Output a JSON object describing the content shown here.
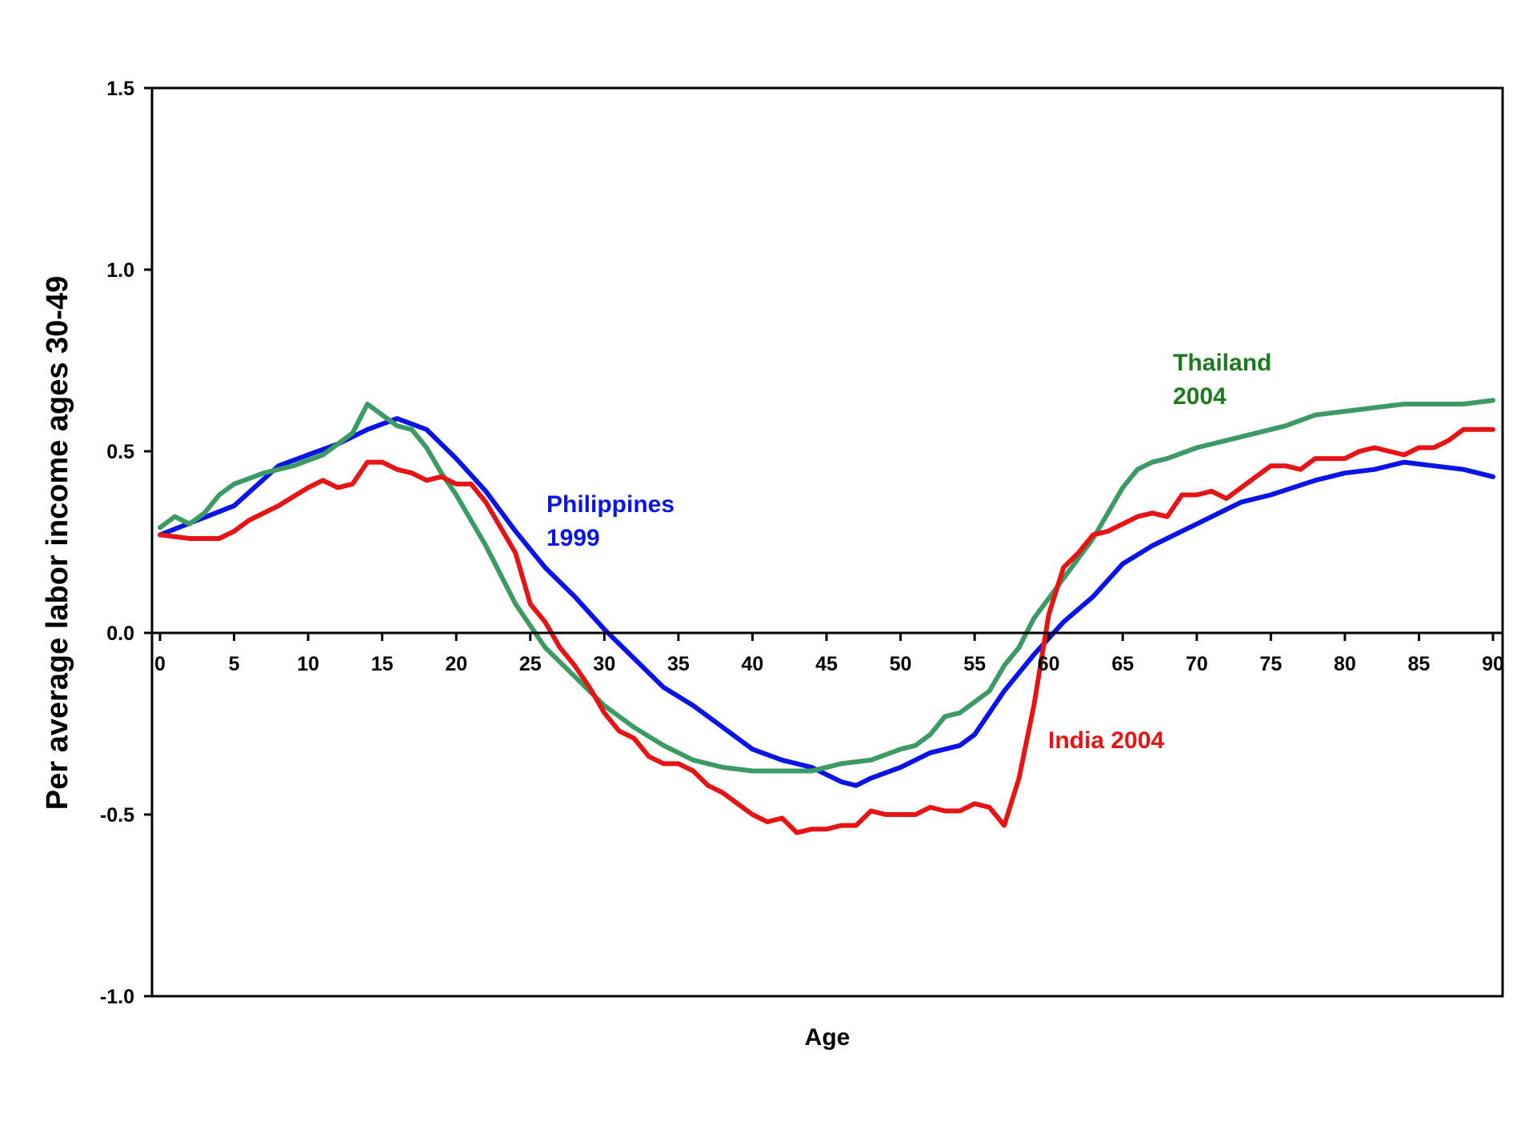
{
  "chart_data": {
    "type": "line",
    "title": "",
    "xlabel": "Age",
    "ylabel": "Per average labor income ages 30-49",
    "xlim": [
      0,
      90
    ],
    "ylim": [
      -1.0,
      1.5
    ],
    "x_ticks": [
      "0",
      "5",
      "10",
      "15",
      "20",
      "25",
      "30",
      "35",
      "40",
      "45",
      "50",
      "55",
      "60",
      "65",
      "70",
      "75",
      "80",
      "85",
      "90"
    ],
    "y_ticks": [
      "1.5",
      "1.0",
      "0.5",
      "0.0",
      "-0.5",
      "-1.0"
    ],
    "grid": false,
    "legend": "none",
    "series": [
      {
        "name": "Philippines 1999",
        "label_lines": [
          "Philippines",
          "1999"
        ],
        "color": "#0a14e6",
        "points": [
          [
            0,
            0.27
          ],
          [
            5,
            0.35
          ],
          [
            8,
            0.46
          ],
          [
            10,
            0.49
          ],
          [
            12,
            0.52
          ],
          [
            14,
            0.56
          ],
          [
            16,
            0.59
          ],
          [
            18,
            0.56
          ],
          [
            20,
            0.48
          ],
          [
            22,
            0.39
          ],
          [
            24,
            0.28
          ],
          [
            26,
            0.18
          ],
          [
            28,
            0.1
          ],
          [
            30,
            0.01
          ],
          [
            32,
            -0.07
          ],
          [
            34,
            -0.15
          ],
          [
            36,
            -0.2
          ],
          [
            38,
            -0.26
          ],
          [
            40,
            -0.32
          ],
          [
            42,
            -0.35
          ],
          [
            44,
            -0.37
          ],
          [
            46,
            -0.41
          ],
          [
            47,
            -0.42
          ],
          [
            48,
            -0.4
          ],
          [
            50,
            -0.37
          ],
          [
            52,
            -0.33
          ],
          [
            54,
            -0.31
          ],
          [
            55,
            -0.28
          ],
          [
            57,
            -0.16
          ],
          [
            59,
            -0.06
          ],
          [
            61,
            0.03
          ],
          [
            63,
            0.1
          ],
          [
            65,
            0.19
          ],
          [
            67,
            0.24
          ],
          [
            70,
            0.3
          ],
          [
            73,
            0.36
          ],
          [
            75,
            0.38
          ],
          [
            78,
            0.42
          ],
          [
            80,
            0.44
          ],
          [
            82,
            0.45
          ],
          [
            84,
            0.47
          ],
          [
            86,
            0.46
          ],
          [
            88,
            0.45
          ],
          [
            90,
            0.43
          ]
        ]
      },
      {
        "name": "India 2004",
        "label_lines": [
          "India 2004"
        ],
        "color": "#e61414",
        "points": [
          [
            0,
            0.27
          ],
          [
            2,
            0.26
          ],
          [
            4,
            0.26
          ],
          [
            5,
            0.28
          ],
          [
            6,
            0.31
          ],
          [
            8,
            0.35
          ],
          [
            10,
            0.4
          ],
          [
            11,
            0.42
          ],
          [
            12,
            0.4
          ],
          [
            13,
            0.41
          ],
          [
            14,
            0.47
          ],
          [
            15,
            0.47
          ],
          [
            16,
            0.45
          ],
          [
            17,
            0.44
          ],
          [
            18,
            0.42
          ],
          [
            19,
            0.43
          ],
          [
            20,
            0.41
          ],
          [
            21,
            0.41
          ],
          [
            22,
            0.36
          ],
          [
            24,
            0.22
          ],
          [
            25,
            0.08
          ],
          [
            26,
            0.03
          ],
          [
            27,
            -0.04
          ],
          [
            28,
            -0.09
          ],
          [
            29,
            -0.15
          ],
          [
            30,
            -0.22
          ],
          [
            31,
            -0.27
          ],
          [
            32,
            -0.29
          ],
          [
            33,
            -0.34
          ],
          [
            34,
            -0.36
          ],
          [
            35,
            -0.36
          ],
          [
            36,
            -0.38
          ],
          [
            37,
            -0.42
          ],
          [
            38,
            -0.44
          ],
          [
            39,
            -0.47
          ],
          [
            40,
            -0.5
          ],
          [
            41,
            -0.52
          ],
          [
            42,
            -0.51
          ],
          [
            43,
            -0.55
          ],
          [
            44,
            -0.54
          ],
          [
            45,
            -0.54
          ],
          [
            46,
            -0.53
          ],
          [
            47,
            -0.53
          ],
          [
            48,
            -0.49
          ],
          [
            49,
            -0.5
          ],
          [
            50,
            -0.5
          ],
          [
            51,
            -0.5
          ],
          [
            52,
            -0.48
          ],
          [
            53,
            -0.49
          ],
          [
            54,
            -0.49
          ],
          [
            55,
            -0.47
          ],
          [
            56,
            -0.48
          ],
          [
            57,
            -0.53
          ],
          [
            58,
            -0.4
          ],
          [
            59,
            -0.2
          ],
          [
            60,
            0.05
          ],
          [
            61,
            0.18
          ],
          [
            62,
            0.22
          ],
          [
            63,
            0.27
          ],
          [
            64,
            0.28
          ],
          [
            65,
            0.3
          ],
          [
            66,
            0.32
          ],
          [
            67,
            0.33
          ],
          [
            68,
            0.32
          ],
          [
            69,
            0.38
          ],
          [
            70,
            0.38
          ],
          [
            71,
            0.39
          ],
          [
            72,
            0.37
          ],
          [
            73,
            0.4
          ],
          [
            74,
            0.43
          ],
          [
            75,
            0.46
          ],
          [
            76,
            0.46
          ],
          [
            77,
            0.45
          ],
          [
            78,
            0.48
          ],
          [
            79,
            0.48
          ],
          [
            80,
            0.48
          ],
          [
            81,
            0.5
          ],
          [
            82,
            0.51
          ],
          [
            83,
            0.5
          ],
          [
            84,
            0.49
          ],
          [
            85,
            0.51
          ],
          [
            86,
            0.51
          ],
          [
            87,
            0.53
          ],
          [
            88,
            0.56
          ],
          [
            89,
            0.56
          ],
          [
            90,
            0.56
          ]
        ]
      },
      {
        "name": "Thailand 2004",
        "label_lines": [
          "Thailand",
          "2004"
        ],
        "color": "#3c9a64",
        "label_color": "#1e7a1e",
        "points": [
          [
            0,
            0.29
          ],
          [
            1,
            0.32
          ],
          [
            2,
            0.3
          ],
          [
            3,
            0.33
          ],
          [
            4,
            0.38
          ],
          [
            5,
            0.41
          ],
          [
            7,
            0.44
          ],
          [
            9,
            0.46
          ],
          [
            11,
            0.49
          ],
          [
            13,
            0.55
          ],
          [
            14,
            0.63
          ],
          [
            15,
            0.6
          ],
          [
            16,
            0.57
          ],
          [
            17,
            0.56
          ],
          [
            18,
            0.51
          ],
          [
            19,
            0.44
          ],
          [
            20,
            0.38
          ],
          [
            22,
            0.24
          ],
          [
            24,
            0.08
          ],
          [
            26,
            -0.04
          ],
          [
            28,
            -0.12
          ],
          [
            30,
            -0.2
          ],
          [
            32,
            -0.26
          ],
          [
            34,
            -0.31
          ],
          [
            36,
            -0.35
          ],
          [
            38,
            -0.37
          ],
          [
            40,
            -0.38
          ],
          [
            42,
            -0.38
          ],
          [
            44,
            -0.38
          ],
          [
            46,
            -0.36
          ],
          [
            48,
            -0.35
          ],
          [
            50,
            -0.32
          ],
          [
            51,
            -0.31
          ],
          [
            52,
            -0.28
          ],
          [
            53,
            -0.23
          ],
          [
            54,
            -0.22
          ],
          [
            55,
            -0.19
          ],
          [
            56,
            -0.16
          ],
          [
            57,
            -0.09
          ],
          [
            58,
            -0.04
          ],
          [
            59,
            0.04
          ],
          [
            61,
            0.15
          ],
          [
            63,
            0.26
          ],
          [
            65,
            0.4
          ],
          [
            66,
            0.45
          ],
          [
            67,
            0.47
          ],
          [
            68,
            0.48
          ],
          [
            70,
            0.51
          ],
          [
            72,
            0.53
          ],
          [
            74,
            0.55
          ],
          [
            76,
            0.57
          ],
          [
            78,
            0.6
          ],
          [
            80,
            0.61
          ],
          [
            82,
            0.62
          ],
          [
            84,
            0.63
          ],
          [
            86,
            0.63
          ],
          [
            88,
            0.63
          ],
          [
            90,
            0.64
          ]
        ]
      }
    ]
  }
}
